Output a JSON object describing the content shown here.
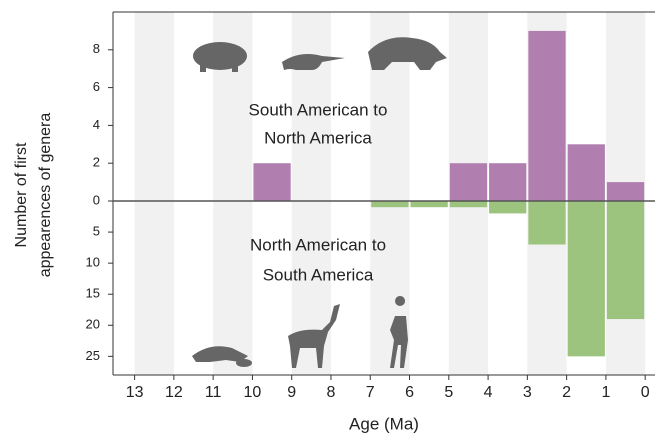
{
  "chart_data": [
    {
      "type": "histogram",
      "annotation": [
        "South American to",
        "North America"
      ],
      "ylabel": [
        "Number of first",
        "appearences of genera"
      ],
      "bins": [
        13,
        12,
        11,
        10,
        9,
        8,
        7,
        6,
        5,
        4,
        3,
        2,
        1,
        0
      ],
      "values": [
        0,
        0,
        0,
        2,
        0,
        0,
        0,
        0,
        2,
        2,
        9,
        3,
        1
      ],
      "color": "#b07fb0",
      "ylim": [
        0,
        10
      ],
      "yticks": [
        0,
        2,
        4,
        6,
        8
      ],
      "inverted": false
    },
    {
      "type": "histogram",
      "annotation": [
        "North American to",
        "South America"
      ],
      "xlabel": "Age (Ma)",
      "bins": [
        13,
        12,
        11,
        10,
        9,
        8,
        7,
        6,
        5,
        4,
        3,
        2,
        1,
        0
      ],
      "values": [
        0,
        0,
        0,
        0,
        0,
        0,
        1,
        1,
        1,
        2,
        7,
        25,
        19
      ],
      "color": "#9dc47f",
      "ylim": [
        0,
        28
      ],
      "yticks": [
        5,
        10,
        15,
        20,
        25
      ],
      "inverted": true,
      "xlim": [
        13.55,
        -0.25
      ],
      "xticks": [
        13,
        12,
        11,
        10,
        9,
        8,
        7,
        6,
        5,
        4,
        3,
        2,
        1,
        0
      ]
    }
  ]
}
